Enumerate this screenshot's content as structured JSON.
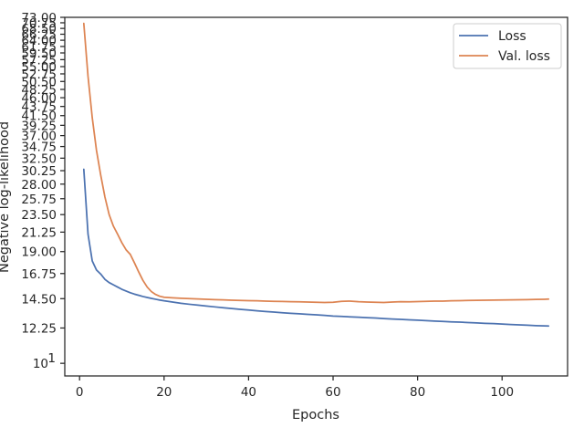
{
  "chart_data": {
    "type": "line",
    "title": "",
    "xlabel": "Epochs",
    "ylabel": "Negative log-likelihood",
    "y_scale": "log",
    "xlim": [
      -3.5,
      115.5
    ],
    "ylim": [
      9.3,
      73.0
    ],
    "grid": false,
    "legend_position": "top-right",
    "x_ticks": [
      0,
      20,
      40,
      60,
      80,
      100
    ],
    "x_tick_labels": [
      "0",
      "20",
      "40",
      "60",
      "80",
      "100"
    ],
    "y_ticks": [
      10,
      12.25,
      14.5,
      16.75,
      19.0,
      21.25,
      23.5,
      25.75,
      28.0,
      30.25,
      32.5,
      34.75,
      37.0,
      39.25,
      41.5,
      43.75,
      46.0,
      48.25,
      50.5,
      52.75,
      55.0,
      57.25,
      59.5,
      61.75,
      64.0,
      66.25,
      68.5,
      70.75,
      73.0
    ],
    "y_tick_labels": [
      "10^1",
      "12.25",
      "14.50",
      "16.75",
      "19.00",
      "21.25",
      "23.50",
      "25.75",
      "28.00",
      "30.25",
      "32.50",
      "34.75",
      "37.00",
      "39.25",
      "41.50",
      "43.75",
      "46.00",
      "48.25",
      "50.50",
      "52.75",
      "55.00",
      "57.25",
      "59.50",
      "61.75",
      "64.00",
      "66.25",
      "68.50",
      "70.75",
      "73.00"
    ],
    "series": [
      {
        "name": "Loss",
        "color": "#4c72b0",
        "points": [
          [
            1,
            30.5
          ],
          [
            2,
            21.0
          ],
          [
            3,
            18.0
          ],
          [
            4,
            17.1
          ],
          [
            5,
            16.7
          ],
          [
            6,
            16.2
          ],
          [
            7,
            15.9
          ],
          [
            8,
            15.7
          ],
          [
            9,
            15.5
          ],
          [
            10,
            15.3
          ],
          [
            11,
            15.15
          ],
          [
            12,
            15.0
          ],
          [
            13,
            14.88
          ],
          [
            14,
            14.78
          ],
          [
            15,
            14.68
          ],
          [
            16,
            14.6
          ],
          [
            17,
            14.52
          ],
          [
            18,
            14.45
          ],
          [
            19,
            14.38
          ],
          [
            20,
            14.32
          ],
          [
            22,
            14.22
          ],
          [
            24,
            14.12
          ],
          [
            26,
            14.04
          ],
          [
            28,
            13.97
          ],
          [
            30,
            13.9
          ],
          [
            32,
            13.83
          ],
          [
            34,
            13.76
          ],
          [
            36,
            13.7
          ],
          [
            38,
            13.64
          ],
          [
            40,
            13.58
          ],
          [
            42,
            13.52
          ],
          [
            44,
            13.47
          ],
          [
            46,
            13.42
          ],
          [
            48,
            13.37
          ],
          [
            50,
            13.33
          ],
          [
            52,
            13.29
          ],
          [
            54,
            13.25
          ],
          [
            56,
            13.21
          ],
          [
            58,
            13.17
          ],
          [
            60,
            13.12
          ],
          [
            62,
            13.09
          ],
          [
            64,
            13.06
          ],
          [
            66,
            13.03
          ],
          [
            68,
            13.0
          ],
          [
            70,
            12.97
          ],
          [
            72,
            12.93
          ],
          [
            74,
            12.9
          ],
          [
            76,
            12.87
          ],
          [
            78,
            12.84
          ],
          [
            80,
            12.81
          ],
          [
            82,
            12.78
          ],
          [
            84,
            12.75
          ],
          [
            86,
            12.72
          ],
          [
            88,
            12.69
          ],
          [
            90,
            12.67
          ],
          [
            92,
            12.64
          ],
          [
            94,
            12.61
          ],
          [
            96,
            12.58
          ],
          [
            98,
            12.56
          ],
          [
            100,
            12.53
          ],
          [
            102,
            12.5
          ],
          [
            104,
            12.47
          ],
          [
            106,
            12.45
          ],
          [
            108,
            12.42
          ],
          [
            110,
            12.4
          ],
          [
            111,
            12.39
          ]
        ]
      },
      {
        "name": "Val. loss",
        "color": "#dd8452",
        "points": [
          [
            1,
            70.5
          ],
          [
            2,
            52.0
          ],
          [
            3,
            41.0
          ],
          [
            4,
            34.0
          ],
          [
            5,
            29.5
          ],
          [
            6,
            26.0
          ],
          [
            7,
            23.5
          ],
          [
            8,
            22.0
          ],
          [
            9,
            21.0
          ],
          [
            10,
            20.0
          ],
          [
            11,
            19.2
          ],
          [
            12,
            18.7
          ],
          [
            13,
            17.8
          ],
          [
            14,
            16.9
          ],
          [
            15,
            16.1
          ],
          [
            16,
            15.5
          ],
          [
            17,
            15.1
          ],
          [
            18,
            14.85
          ],
          [
            19,
            14.7
          ],
          [
            20,
            14.62
          ],
          [
            22,
            14.57
          ],
          [
            24,
            14.53
          ],
          [
            26,
            14.5
          ],
          [
            28,
            14.47
          ],
          [
            30,
            14.45
          ],
          [
            32,
            14.42
          ],
          [
            34,
            14.4
          ],
          [
            36,
            14.37
          ],
          [
            38,
            14.35
          ],
          [
            40,
            14.33
          ],
          [
            42,
            14.32
          ],
          [
            44,
            14.3
          ],
          [
            46,
            14.28
          ],
          [
            48,
            14.27
          ],
          [
            50,
            14.25
          ],
          [
            52,
            14.24
          ],
          [
            54,
            14.22
          ],
          [
            56,
            14.2
          ],
          [
            58,
            14.18
          ],
          [
            60,
            14.2
          ],
          [
            62,
            14.28
          ],
          [
            64,
            14.3
          ],
          [
            66,
            14.25
          ],
          [
            68,
            14.22
          ],
          [
            70,
            14.2
          ],
          [
            72,
            14.18
          ],
          [
            74,
            14.22
          ],
          [
            76,
            14.25
          ],
          [
            78,
            14.24
          ],
          [
            80,
            14.26
          ],
          [
            82,
            14.28
          ],
          [
            84,
            14.3
          ],
          [
            86,
            14.3
          ],
          [
            88,
            14.32
          ],
          [
            90,
            14.33
          ],
          [
            92,
            14.35
          ],
          [
            94,
            14.36
          ],
          [
            96,
            14.37
          ],
          [
            98,
            14.38
          ],
          [
            100,
            14.39
          ],
          [
            102,
            14.4
          ],
          [
            104,
            14.41
          ],
          [
            106,
            14.42
          ],
          [
            108,
            14.44
          ],
          [
            110,
            14.45
          ],
          [
            111,
            14.46
          ]
        ]
      }
    ]
  }
}
